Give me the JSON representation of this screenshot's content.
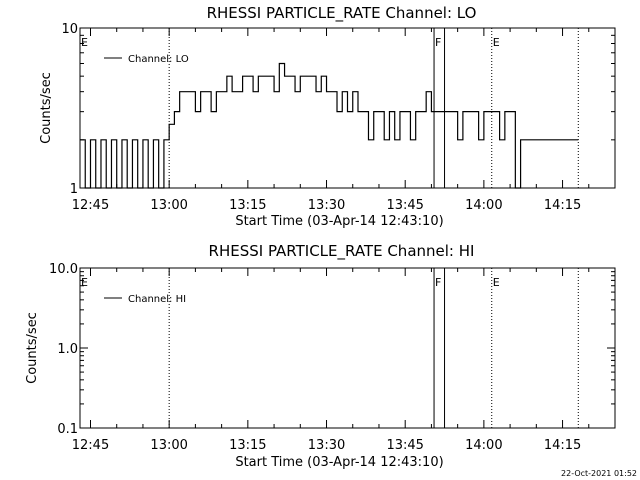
{
  "chart_data": [
    {
      "type": "line",
      "title": "RHESSI PARTICLE_RATE Channel: LO",
      "xlabel": "Start Time (03-Apr-14 12:43:10)",
      "ylabel": "Counts/sec",
      "xlim": [
        "12:43",
        "14:25"
      ],
      "ylim": [
        1,
        10
      ],
      "y_scale": "log",
      "x_ticks": [
        "12:45",
        "13:00",
        "13:15",
        "13:30",
        "13:45",
        "14:00",
        "14:15"
      ],
      "y_ticks": [
        "1",
        "10"
      ],
      "legend": {
        "placement": "top-left",
        "entries": [
          "Channel: LO"
        ]
      },
      "markers": [
        {
          "label": "E",
          "x": "12:43",
          "style": "dotted"
        },
        {
          "label": "",
          "x": "13:00",
          "style": "dotted"
        },
        {
          "label": "F",
          "x": "13:50.5",
          "style": "solid"
        },
        {
          "label": "",
          "x": "13:52.5",
          "style": "solid"
        },
        {
          "label": "E",
          "x": "14:01.5",
          "style": "dotted"
        },
        {
          "label": "",
          "x": "14:18",
          "style": "dotted"
        }
      ],
      "series": [
        {
          "values": [
            [
              "12:43",
              2
            ],
            [
              "12:44",
              1
            ],
            [
              "12:45",
              2
            ],
            [
              "12:46",
              1
            ],
            [
              "12:47",
              2
            ],
            [
              "12:48",
              1
            ],
            [
              "12:49",
              2
            ],
            [
              "12:50",
              1
            ],
            [
              "12:51",
              2
            ],
            [
              "12:52",
              1
            ],
            [
              "12:53",
              2
            ],
            [
              "12:54",
              1
            ],
            [
              "12:55",
              2
            ],
            [
              "12:56",
              1
            ],
            [
              "12:57",
              2
            ],
            [
              "12:58",
              1
            ],
            [
              "12:59",
              2
            ],
            [
              "13:00",
              2.5
            ],
            [
              "13:01",
              3
            ],
            [
              "13:02",
              4
            ],
            [
              "13:03",
              4
            ],
            [
              "13:04",
              4
            ],
            [
              "13:05",
              3
            ],
            [
              "13:06",
              4
            ],
            [
              "13:07",
              4
            ],
            [
              "13:08",
              3
            ],
            [
              "13:09",
              4
            ],
            [
              "13:10",
              4
            ],
            [
              "13:11",
              5
            ],
            [
              "13:12",
              4
            ],
            [
              "13:13",
              4
            ],
            [
              "13:14",
              5
            ],
            [
              "13:15",
              5
            ],
            [
              "13:16",
              4
            ],
            [
              "13:17",
              5
            ],
            [
              "13:18",
              5
            ],
            [
              "13:19",
              5
            ],
            [
              "13:20",
              4
            ],
            [
              "13:21",
              6
            ],
            [
              "13:22",
              5
            ],
            [
              "13:23",
              5
            ],
            [
              "13:24",
              4
            ],
            [
              "13:25",
              5
            ],
            [
              "13:26",
              5
            ],
            [
              "13:27",
              5
            ],
            [
              "13:28",
              4
            ],
            [
              "13:29",
              5
            ],
            [
              "13:30",
              4
            ],
            [
              "13:31",
              4
            ],
            [
              "13:32",
              3
            ],
            [
              "13:33",
              4
            ],
            [
              "13:34",
              3
            ],
            [
              "13:35",
              4
            ],
            [
              "13:36",
              3
            ],
            [
              "13:37",
              3
            ],
            [
              "13:38",
              2
            ],
            [
              "13:39",
              3
            ],
            [
              "13:40",
              3
            ],
            [
              "13:41",
              2
            ],
            [
              "13:42",
              3
            ],
            [
              "13:43",
              2
            ],
            [
              "13:44",
              3
            ],
            [
              "13:45",
              3
            ],
            [
              "13:46",
              2
            ],
            [
              "13:47",
              3
            ],
            [
              "13:48",
              3
            ],
            [
              "13:49",
              4
            ],
            [
              "13:50",
              3
            ],
            [
              "13:51",
              3
            ],
            [
              "13:52",
              3
            ],
            [
              "13:53",
              3
            ],
            [
              "13:54",
              3
            ],
            [
              "13:55",
              2
            ],
            [
              "13:56",
              3
            ],
            [
              "13:57",
              3
            ],
            [
              "13:58",
              3
            ],
            [
              "13:59",
              2
            ],
            [
              "14:00",
              3
            ],
            [
              "14:01",
              3
            ],
            [
              "14:02",
              3
            ],
            [
              "14:03",
              2
            ],
            [
              "14:04",
              3
            ],
            [
              "14:05",
              3
            ],
            [
              "14:06",
              1
            ],
            [
              "14:07",
              2
            ],
            [
              "14:18",
              2
            ]
          ]
        }
      ]
    },
    {
      "type": "line",
      "title": "RHESSI PARTICLE_RATE Channel: HI",
      "xlabel": "Start Time (03-Apr-14 12:43:10)",
      "ylabel": "Counts/sec",
      "xlim": [
        "12:43",
        "14:25"
      ],
      "ylim": [
        0.1,
        10
      ],
      "y_scale": "log",
      "x_ticks": [
        "12:45",
        "13:00",
        "13:15",
        "13:30",
        "13:45",
        "14:00",
        "14:15"
      ],
      "y_ticks": [
        "0.1",
        "1.0",
        "10.0"
      ],
      "legend": {
        "placement": "top-left",
        "entries": [
          "Channel: HI"
        ]
      },
      "markers": [
        {
          "label": "E",
          "x": "12:43",
          "style": "dotted"
        },
        {
          "label": "",
          "x": "13:00",
          "style": "dotted"
        },
        {
          "label": "F",
          "x": "13:50.5",
          "style": "solid"
        },
        {
          "label": "",
          "x": "13:52.5",
          "style": "solid"
        },
        {
          "label": "E",
          "x": "14:01.5",
          "style": "dotted"
        },
        {
          "label": "",
          "x": "14:18",
          "style": "dotted"
        }
      ],
      "series": [
        {
          "values": []
        }
      ]
    }
  ],
  "footer": {
    "timestamp": "22-Oct-2021 01:52"
  }
}
